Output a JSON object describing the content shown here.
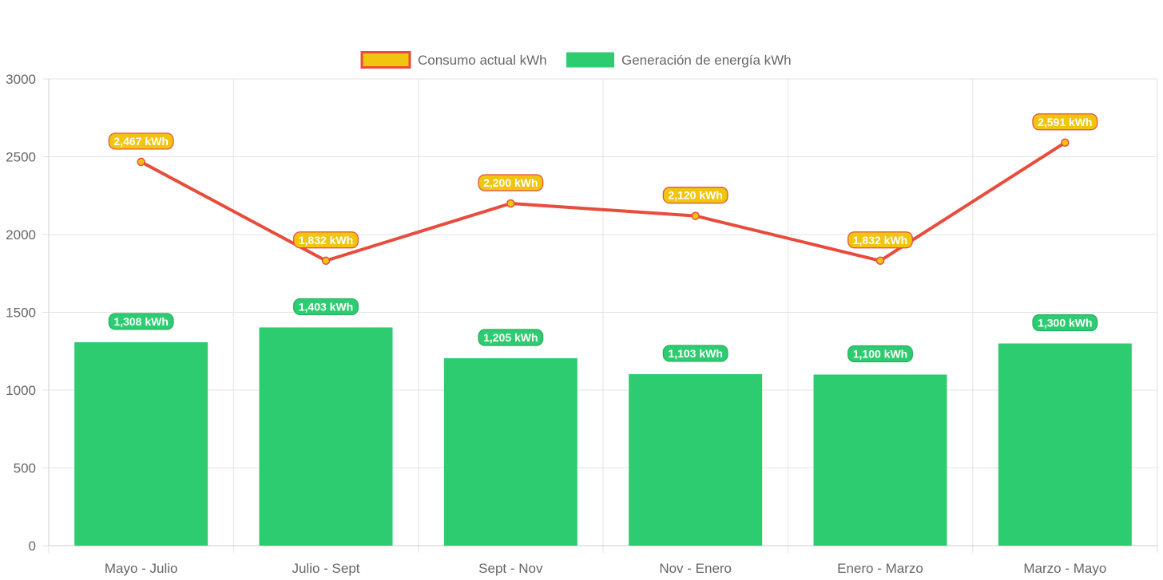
{
  "chart_data": {
    "type": "bar",
    "categories": [
      "Mayo - Julio",
      "Julio - Sept",
      "Sept - Nov",
      "Nov - Enero",
      "Enero - Marzo",
      "Marzo - Mayo"
    ],
    "series": [
      {
        "name": "Consumo actual kWh",
        "kind": "line",
        "values": [
          2467,
          1832,
          2200,
          2120,
          1832,
          2591
        ],
        "labels": [
          "2,467 kWh",
          "1,832 kWh",
          "2,200 kWh",
          "2,120 kWh",
          "1,832 kWh",
          "2,591 kWh"
        ],
        "color": "#e74c3c",
        "fill_color": "#f1c40f"
      },
      {
        "name": "Generación de energía kWh",
        "kind": "bar",
        "values": [
          1308,
          1403,
          1205,
          1103,
          1100,
          1300
        ],
        "labels": [
          "1,308 kWh",
          "1,403 kWh",
          "1,205 kWh",
          "1,103 kWh",
          "1,100 kWh",
          "1,300 kWh"
        ],
        "color": "#2ecc71"
      }
    ],
    "ylim": [
      0,
      3000
    ],
    "yticks": [
      "0",
      "500",
      "1000",
      "1500",
      "2000",
      "2500",
      "3000"
    ],
    "grid": true,
    "legend_position": "top-center"
  }
}
